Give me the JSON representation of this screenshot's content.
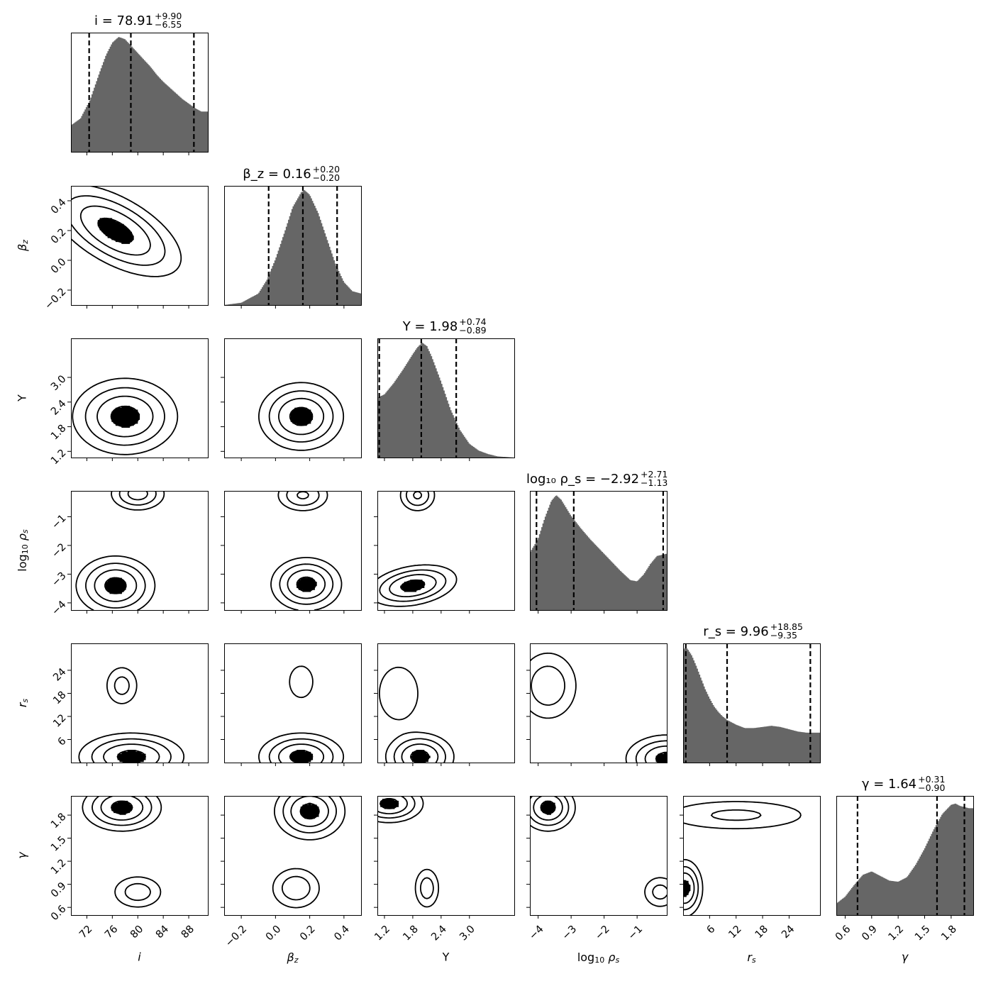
{
  "chart_data": {
    "type": "corner",
    "params": [
      {
        "key": "i",
        "axis_label": "i",
        "title": "i = 78.91+9.90−6.55",
        "title_main": "i = 78.91",
        "title_plus": "+9.90",
        "title_minus": "−6.55",
        "range": [
          69.5,
          91.0
        ],
        "ticks": [
          72,
          76,
          80,
          84,
          88
        ],
        "tick_labels": [
          "72",
          "76",
          "80",
          "84",
          "88"
        ],
        "quantiles": [
          72.36,
          78.91,
          88.81
        ],
        "hist_x": [
          69.5,
          71,
          72.5,
          74,
          75,
          76,
          77,
          78,
          79,
          80,
          81,
          82,
          83,
          84,
          85,
          86,
          87,
          88,
          89,
          90,
          91
        ],
        "hist_y": [
          0.23,
          0.29,
          0.45,
          0.69,
          0.84,
          0.95,
          1.0,
          0.98,
          0.92,
          0.86,
          0.8,
          0.74,
          0.67,
          0.61,
          0.56,
          0.51,
          0.46,
          0.42,
          0.38,
          0.35,
          0.35
        ]
      },
      {
        "key": "beta",
        "axis_label": "β_z",
        "title": "β_z = 0.16+0.20−0.20",
        "title_main": "β_z = 0.16",
        "title_plus": "+0.20",
        "title_minus": "−0.20",
        "range": [
          -0.3,
          0.5
        ],
        "ticks": [
          -0.2,
          0.0,
          0.2,
          0.4
        ],
        "tick_labels": [
          "−0.2",
          "0.0",
          "0.2",
          "0.4"
        ],
        "quantiles": [
          -0.04,
          0.16,
          0.36
        ],
        "hist_x": [
          -0.3,
          -0.2,
          -0.1,
          -0.05,
          0.0,
          0.05,
          0.1,
          0.15,
          0.17,
          0.2,
          0.25,
          0.3,
          0.35,
          0.4,
          0.45,
          0.5
        ],
        "hist_y": [
          0.0,
          0.02,
          0.1,
          0.22,
          0.4,
          0.62,
          0.85,
          0.98,
          1.0,
          0.96,
          0.8,
          0.58,
          0.36,
          0.2,
          0.12,
          0.1
        ]
      },
      {
        "key": "Y",
        "axis_label": "Y",
        "title": "Y = 1.98+0.74−0.89",
        "title_main": "Y = 1.98",
        "title_plus": "+0.74",
        "title_minus": "−0.89",
        "range": [
          1.05,
          3.95
        ],
        "ticks": [
          1.2,
          1.8,
          2.4,
          3.0
        ],
        "tick_labels": [
          "1.2",
          "1.8",
          "2.4",
          "3.0"
        ],
        "quantiles": [
          1.09,
          1.98,
          2.72
        ],
        "hist_x": [
          1.05,
          1.2,
          1.4,
          1.6,
          1.8,
          1.9,
          2.0,
          2.1,
          2.2,
          2.4,
          2.6,
          2.8,
          3.0,
          3.2,
          3.4,
          3.6,
          3.95
        ],
        "hist_y": [
          0.52,
          0.55,
          0.65,
          0.77,
          0.9,
          0.96,
          1.0,
          0.97,
          0.88,
          0.66,
          0.42,
          0.24,
          0.12,
          0.06,
          0.03,
          0.01,
          0.0
        ]
      },
      {
        "key": "logrho",
        "axis_label": "log10 ρ_s",
        "title": "log10 ρ_s = −2.92+2.71−1.13",
        "title_main": "log₁₀ ρ_s = −2.92",
        "title_plus": "+2.71",
        "title_minus": "−1.13",
        "range": [
          -4.25,
          -0.1
        ],
        "ticks": [
          -4,
          -3,
          -2,
          -1
        ],
        "tick_labels": [
          "−4",
          "−3",
          "−2",
          "−1"
        ],
        "quantiles": [
          -4.05,
          -2.92,
          -0.21
        ],
        "hist_x": [
          -4.25,
          -4.0,
          -3.8,
          -3.6,
          -3.45,
          -3.3,
          -3.0,
          -2.7,
          -2.4,
          -2.1,
          -1.8,
          -1.5,
          -1.2,
          -1.0,
          -0.8,
          -0.6,
          -0.4,
          -0.1
        ],
        "hist_y": [
          0.5,
          0.62,
          0.8,
          0.95,
          1.0,
          0.96,
          0.82,
          0.71,
          0.61,
          0.52,
          0.43,
          0.34,
          0.26,
          0.25,
          0.31,
          0.4,
          0.47,
          0.49
        ]
      },
      {
        "key": "rs",
        "axis_label": "r_s",
        "title": "r_s = 9.96+18.85−9.35",
        "title_main": "r_s = 9.96",
        "title_plus": "+18.85",
        "title_minus": "−9.35",
        "range": [
          0.0,
          31.0
        ],
        "ticks": [
          6,
          12,
          18,
          24
        ],
        "tick_labels": [
          "6",
          "12",
          "18",
          "24"
        ],
        "quantiles": [
          0.61,
          9.96,
          28.81
        ],
        "hist_x": [
          0,
          0.5,
          1,
          2,
          3,
          4,
          5,
          6,
          7,
          8,
          9,
          10,
          11,
          12,
          14,
          16,
          18,
          20,
          22,
          24,
          26,
          28,
          31
        ],
        "hist_y": [
          0.98,
          1.0,
          0.99,
          0.93,
          0.84,
          0.74,
          0.64,
          0.56,
          0.49,
          0.44,
          0.4,
          0.37,
          0.35,
          0.33,
          0.3,
          0.3,
          0.31,
          0.32,
          0.31,
          0.29,
          0.27,
          0.26,
          0.26
        ]
      },
      {
        "key": "gamma",
        "axis_label": "γ",
        "title": "γ = 1.64+0.31−0.90",
        "title_main": "γ = 1.64",
        "title_plus": "+0.31",
        "title_minus": "−0.90",
        "range": [
          0.5,
          2.05
        ],
        "ticks": [
          0.6,
          0.9,
          1.2,
          1.5,
          1.8
        ],
        "tick_labels": [
          "0.6",
          "0.9",
          "1.2",
          "1.5",
          "1.8"
        ],
        "quantiles": [
          0.74,
          1.64,
          1.95
        ],
        "hist_x": [
          0.5,
          0.6,
          0.7,
          0.8,
          0.9,
          1.0,
          1.1,
          1.2,
          1.3,
          1.4,
          1.5,
          1.6,
          1.7,
          1.8,
          1.85,
          1.9,
          2.0,
          2.05
        ],
        "hist_y": [
          0.1,
          0.16,
          0.26,
          0.35,
          0.38,
          0.34,
          0.3,
          0.29,
          0.33,
          0.44,
          0.58,
          0.74,
          0.88,
          0.96,
          0.97,
          0.95,
          0.93,
          0.93
        ]
      }
    ],
    "pairs": [
      {
        "x": "i",
        "y": "beta",
        "blobs": [
          {
            "cx": 76.5,
            "cy": 0.2,
            "sx": 5,
            "sy": 0.15,
            "rho": -0.6,
            "w": 1
          }
        ]
      },
      {
        "x": "i",
        "y": "Y",
        "blobs": [
          {
            "cx": 78,
            "cy": 2.05,
            "sx": 4,
            "sy": 0.45,
            "rho": 0,
            "w": 1
          }
        ]
      },
      {
        "x": "beta",
        "y": "Y",
        "blobs": [
          {
            "cx": 0.15,
            "cy": 2.05,
            "sx": 0.12,
            "sy": 0.4,
            "rho": 0,
            "w": 1
          }
        ]
      },
      {
        "x": "i",
        "y": "logrho",
        "blobs": [
          {
            "cx": 76.5,
            "cy": -3.4,
            "sx": 3,
            "sy": 0.5,
            "rho": 0,
            "w": 1
          },
          {
            "cx": 80,
            "cy": -0.2,
            "sx": 2.2,
            "sy": 0.3,
            "rho": 0,
            "w": 0.7
          }
        ]
      },
      {
        "x": "beta",
        "y": "logrho",
        "blobs": [
          {
            "cx": 0.18,
            "cy": -3.35,
            "sx": 0.1,
            "sy": 0.45,
            "rho": 0,
            "w": 1
          },
          {
            "cx": 0.16,
            "cy": -0.25,
            "sx": 0.08,
            "sy": 0.3,
            "rho": 0,
            "w": 0.6
          }
        ]
      },
      {
        "x": "Y",
        "y": "logrho",
        "blobs": [
          {
            "cx": 1.8,
            "cy": -3.4,
            "sx": 0.45,
            "sy": 0.35,
            "rho": 0.3,
            "w": 1
          },
          {
            "cx": 1.9,
            "cy": -0.25,
            "sx": 0.2,
            "sy": 0.3,
            "rho": 0,
            "w": 0.6
          }
        ]
      },
      {
        "x": "i",
        "y": "rs",
        "blobs": [
          {
            "cx": 79,
            "cy": 1.5,
            "sx": 4,
            "sy": 3,
            "rho": 0,
            "w": 1
          },
          {
            "cx": 77.5,
            "cy": 20,
            "sx": 1.5,
            "sy": 3,
            "rho": 0,
            "w": 0.4
          }
        ]
      },
      {
        "x": "beta",
        "y": "rs",
        "blobs": [
          {
            "cx": 0.15,
            "cy": 1.5,
            "sx": 0.12,
            "sy": 3,
            "rho": 0,
            "w": 1
          },
          {
            "cx": 0.15,
            "cy": 21,
            "sx": 0.05,
            "sy": 3,
            "rho": 0,
            "w": 0.3
          }
        ]
      },
      {
        "x": "Y",
        "y": "rs",
        "blobs": [
          {
            "cx": 1.95,
            "cy": 1.5,
            "sx": 0.35,
            "sy": 3,
            "rho": 0,
            "w": 1
          },
          {
            "cx": 1.5,
            "cy": 18,
            "sx": 0.3,
            "sy": 5,
            "rho": 0,
            "w": 0.3
          }
        ]
      },
      {
        "x": "logrho",
        "y": "rs",
        "blobs": [
          {
            "cx": -0.1,
            "cy": 1.0,
            "sx": 0.6,
            "sy": 3,
            "rho": 0,
            "w": 1
          },
          {
            "cx": -3.7,
            "cy": 20,
            "sx": 0.5,
            "sy": 5,
            "rho": 0,
            "w": 0.5
          }
        ]
      },
      {
        "x": "i",
        "y": "gamma",
        "blobs": [
          {
            "cx": 77.5,
            "cy": 1.9,
            "sx": 3,
            "sy": 0.15,
            "rho": 0,
            "w": 1
          },
          {
            "cx": 80,
            "cy": 0.8,
            "sx": 2.2,
            "sy": 0.12,
            "rho": 0,
            "w": 0.45
          }
        ]
      },
      {
        "x": "beta",
        "y": "gamma",
        "blobs": [
          {
            "cx": 0.2,
            "cy": 1.85,
            "sx": 0.1,
            "sy": 0.18,
            "rho": 0,
            "w": 1
          },
          {
            "cx": 0.12,
            "cy": 0.85,
            "sx": 0.08,
            "sy": 0.15,
            "rho": 0,
            "w": 0.5
          }
        ]
      },
      {
        "x": "Y",
        "y": "gamma",
        "blobs": [
          {
            "cx": 1.3,
            "cy": 1.95,
            "sx": 0.35,
            "sy": 0.12,
            "rho": 0,
            "w": 1
          },
          {
            "cx": 2.1,
            "cy": 0.85,
            "sx": 0.15,
            "sy": 0.15,
            "rho": 0,
            "w": 0.45
          }
        ]
      },
      {
        "x": "logrho",
        "y": "gamma",
        "blobs": [
          {
            "cx": -3.7,
            "cy": 1.9,
            "sx": 0.4,
            "sy": 0.15,
            "rho": 0,
            "w": 1
          },
          {
            "cx": -0.3,
            "cy": 0.8,
            "sx": 0.3,
            "sy": 0.12,
            "rho": 0,
            "w": 0.4
          }
        ]
      },
      {
        "x": "rs",
        "y": "gamma",
        "blobs": [
          {
            "cx": 0.3,
            "cy": 0.85,
            "sx": 2,
            "sy": 0.18,
            "rho": 0,
            "w": 1
          },
          {
            "cx": 12,
            "cy": 1.8,
            "sx": 10,
            "sy": 0.12,
            "rho": 0,
            "w": 0.35
          }
        ]
      }
    ],
    "hist_color": "#666666",
    "contour_color": "#000000",
    "quantile_line_color": "#000000"
  }
}
